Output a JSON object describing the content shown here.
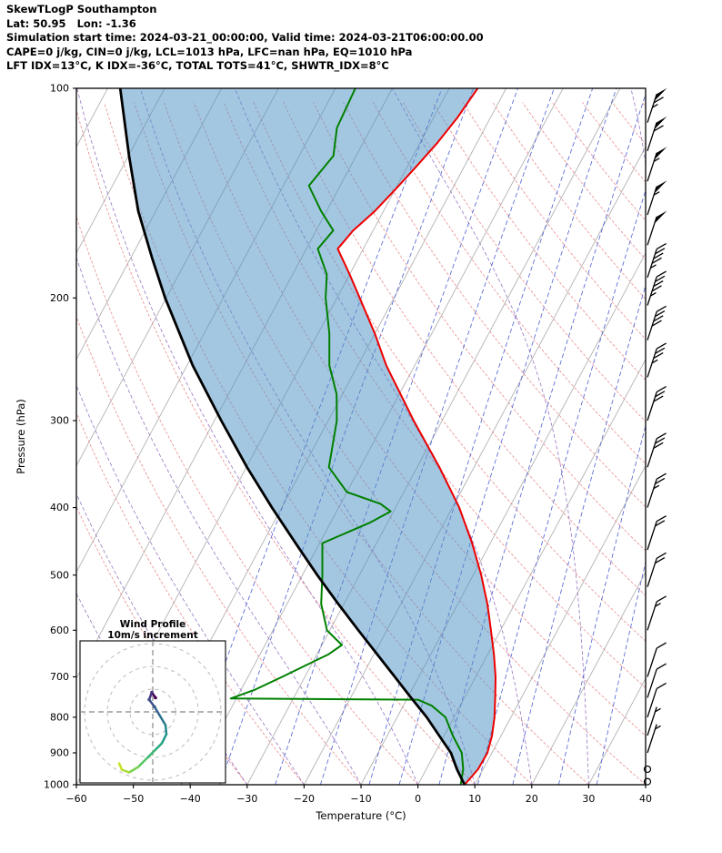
{
  "header": {
    "line1": "SkewTLogP Southampton",
    "line2": "Lat: 50.95   Lon: -1.36",
    "line3": "Simulation start time: 2024-03-21_00:00:00, Valid time: 2024-03-21T06:00:00.00",
    "line4": "CAPE=0 j/kg, CIN=0 j/kg, LCL=1013 hPa, LFC=nan hPa, EQ=1010 hPa",
    "line5": "LFT IDX=13°C, K IDX=-36°C, TOTAL TOTS=41°C, SHWTR_IDX=8°C"
  },
  "chart_data": {
    "type": "skewt",
    "title": "SkewTLogP Southampton",
    "xlabel": "Temperature (°C)",
    "ylabel": "Pressure (hPa)",
    "xlim": [
      -60,
      40
    ],
    "plim": [
      100,
      1000
    ],
    "x_ticks": [
      -60,
      -50,
      -40,
      -30,
      -20,
      -10,
      0,
      10,
      20,
      30,
      40
    ],
    "y_ticks": [
      100,
      200,
      300,
      400,
      500,
      600,
      700,
      800,
      900,
      1000
    ],
    "background": {
      "isotherms": {
        "start": -120,
        "end": 40,
        "step": 10
      },
      "dry_adiabats": {
        "start": -30,
        "end": 200,
        "step": 10
      },
      "moist_adiabats": {
        "start": -40,
        "end": 40,
        "step": 10
      },
      "mixing_ratios": [
        0.1,
        0.2,
        0.5,
        1,
        2,
        3,
        5,
        8,
        12,
        20,
        30
      ]
    },
    "colors": {
      "temperature": "#ee0000",
      "dewpoint": "#008000",
      "parcel": "#000000",
      "shading": "#4a90c4",
      "isotherm": "#b3b3b3",
      "dry_adiabat": "#e98b8b",
      "moist_adiabat": "#9775c2",
      "mixing_ratio": "#4d5fd0"
    },
    "temperature_profile": [
      [
        1000,
        8.2
      ],
      [
        950,
        9.1
      ],
      [
        900,
        9.2
      ],
      [
        850,
        8.4
      ],
      [
        800,
        7.1
      ],
      [
        750,
        5.4
      ],
      [
        700,
        3.5
      ],
      [
        650,
        1.1
      ],
      [
        600,
        -1.7
      ],
      [
        550,
        -4.8
      ],
      [
        500,
        -8.6
      ],
      [
        450,
        -13.2
      ],
      [
        400,
        -18.8
      ],
      [
        350,
        -26.1
      ],
      [
        300,
        -35.0
      ],
      [
        250,
        -45.0
      ],
      [
        225,
        -50.0
      ],
      [
        200,
        -56.0
      ],
      [
        185,
        -60.0
      ],
      [
        170,
        -64.5
      ],
      [
        160,
        -63.5
      ],
      [
        150,
        -61.5
      ],
      [
        140,
        -60.0
      ],
      [
        130,
        -58.5
      ],
      [
        120,
        -57.0
      ],
      [
        110,
        -55.8
      ],
      [
        100,
        -55.0
      ]
    ],
    "dewpoint_profile": [
      [
        1000,
        7.5
      ],
      [
        950,
        6.5
      ],
      [
        900,
        4.7
      ],
      [
        850,
        1.5
      ],
      [
        800,
        -1.5
      ],
      [
        770,
        -5.0
      ],
      [
        755,
        -8.0
      ],
      [
        752,
        -41.0
      ],
      [
        730,
        -37.5
      ],
      [
        700,
        -34.0
      ],
      [
        650,
        -28.0
      ],
      [
        630,
        -26.5
      ],
      [
        615,
        -28.5
      ],
      [
        600,
        -30.5
      ],
      [
        550,
        -34.0
      ],
      [
        500,
        -36.5
      ],
      [
        450,
        -39.5
      ],
      [
        420,
        -33.0
      ],
      [
        405,
        -30.5
      ],
      [
        395,
        -33.0
      ],
      [
        380,
        -40.0
      ],
      [
        350,
        -45.5
      ],
      [
        300,
        -48.5
      ],
      [
        275,
        -51.0
      ],
      [
        250,
        -55.0
      ],
      [
        225,
        -58.0
      ],
      [
        200,
        -62.0
      ],
      [
        185,
        -64.0
      ],
      [
        170,
        -68.0
      ],
      [
        160,
        -67.0
      ],
      [
        150,
        -71.0
      ],
      [
        138,
        -75.5
      ],
      [
        125,
        -74.0
      ],
      [
        114,
        -76.0
      ],
      [
        100,
        -76.5
      ]
    ],
    "parcel_profile": [
      [
        1000,
        8.2
      ],
      [
        950,
        5.4
      ],
      [
        900,
        2.8
      ],
      [
        850,
        -0.9
      ],
      [
        800,
        -4.8
      ],
      [
        750,
        -9.4
      ],
      [
        700,
        -14.2
      ],
      [
        650,
        -19.4
      ],
      [
        600,
        -25.0
      ],
      [
        550,
        -31.0
      ],
      [
        500,
        -37.4
      ],
      [
        450,
        -44.2
      ],
      [
        400,
        -51.7
      ],
      [
        350,
        -59.9
      ],
      [
        300,
        -68.8
      ],
      [
        250,
        -79.0
      ],
      [
        200,
        -90.2
      ],
      [
        175,
        -96.3
      ],
      [
        150,
        -103.1
      ],
      [
        125,
        -109.9
      ],
      [
        100,
        -117.8
      ]
    ],
    "wind_barbs": {
      "units": "m/s",
      "levels": [
        {
          "p": 112,
          "speed": 65
        },
        {
          "p": 123,
          "speed": 60
        },
        {
          "p": 136,
          "speed": 55
        },
        {
          "p": 152,
          "speed": 55
        },
        {
          "p": 168,
          "speed": 50
        },
        {
          "p": 187,
          "speed": 45
        },
        {
          "p": 205,
          "speed": 45
        },
        {
          "p": 230,
          "speed": 40
        },
        {
          "p": 260,
          "speed": 35
        },
        {
          "p": 300,
          "speed": 30
        },
        {
          "p": 350,
          "speed": 30
        },
        {
          "p": 400,
          "speed": 25
        },
        {
          "p": 460,
          "speed": 20
        },
        {
          "p": 520,
          "speed": 20
        },
        {
          "p": 600,
          "speed": 15
        },
        {
          "p": 700,
          "speed": 10
        },
        {
          "p": 750,
          "speed": 10
        },
        {
          "p": 800,
          "speed": 10
        },
        {
          "p": 850,
          "speed": 5
        },
        {
          "p": 900,
          "speed": 5
        },
        {
          "p": 950,
          "speed": 0
        },
        {
          "p": 990,
          "speed": 0
        }
      ]
    },
    "hodograph": {
      "title": "Wind Profile",
      "subtitle": "10m/s increment",
      "ring_spacing": 10,
      "rings": [
        10,
        20,
        30
      ],
      "trace_uv": [
        [
          1.2,
          6.2
        ],
        [
          -0.4,
          8.6
        ],
        [
          -1.6,
          5.4
        ],
        [
          0.8,
          2.2
        ],
        [
          3.2,
          -1.8
        ],
        [
          5.6,
          -5.8
        ],
        [
          6.0,
          -9.8
        ],
        [
          4.0,
          -13.8
        ],
        [
          0.8,
          -17.0
        ],
        [
          -2.8,
          -20.6
        ],
        [
          -6.4,
          -24.2
        ],
        [
          -10.4,
          -26.6
        ],
        [
          -13.6,
          -25.4
        ],
        [
          -14.8,
          -22.6
        ]
      ],
      "trace_colors": [
        "#440154",
        "#46327e",
        "#3d4e8a",
        "#34608d",
        "#2b748e",
        "#24878e",
        "#1f998a",
        "#24aa83",
        "#3cb875",
        "#57c666",
        "#7ad151",
        "#a5db36",
        "#c9e120"
      ]
    }
  }
}
